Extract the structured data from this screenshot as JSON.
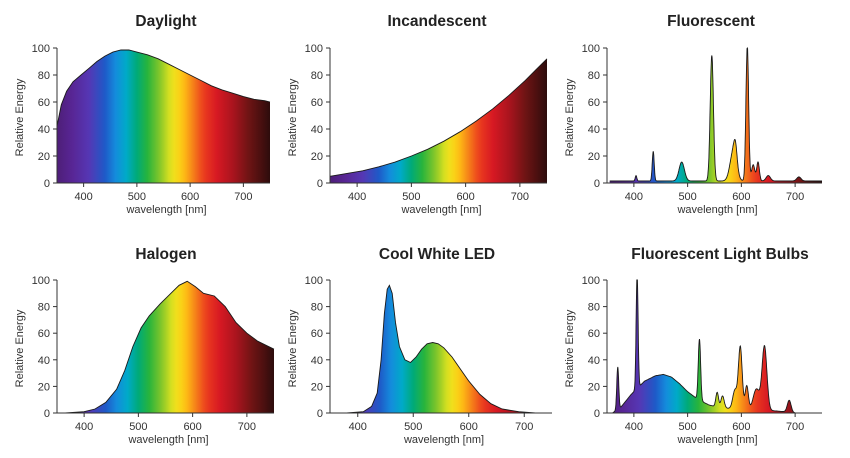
{
  "chart_data": [
    {
      "type": "area",
      "title": "Daylight",
      "xlabel": "wavelength [nm]",
      "ylabel": "Relative Energy",
      "xlim": [
        350,
        750
      ],
      "ylim": [
        0,
        100
      ],
      "xticks": [
        "400",
        "500",
        "600",
        "700"
      ],
      "yticks": [
        "0",
        "20",
        "40",
        "60",
        "80",
        "100"
      ],
      "x": [
        350,
        358,
        368,
        380,
        395,
        410,
        425,
        440,
        455,
        470,
        485,
        500,
        520,
        540,
        560,
        580,
        600,
        620,
        640,
        660,
        680,
        700,
        720,
        740,
        750
      ],
      "y": [
        42,
        58,
        68,
        75,
        80,
        85,
        90,
        94,
        97,
        98.5,
        98.5,
        97,
        95,
        92,
        88,
        84,
        80,
        76,
        72,
        69,
        66.5,
        64,
        62,
        61,
        60
      ]
    },
    {
      "type": "area",
      "title": "Incandescent",
      "xlabel": "wavelength [nm]",
      "ylabel": "Relative Energy",
      "xlim": [
        350,
        750
      ],
      "ylim": [
        0,
        100
      ],
      "xticks": [
        "400",
        "500",
        "600",
        "700"
      ],
      "yticks": [
        "0",
        "20",
        "40",
        "60",
        "80",
        "100"
      ],
      "x": [
        350,
        380,
        410,
        440,
        470,
        500,
        530,
        560,
        590,
        620,
        650,
        680,
        710,
        730,
        750
      ],
      "y": [
        5,
        7,
        9,
        12,
        15.5,
        20,
        25,
        31,
        38,
        46,
        55,
        65,
        76,
        84,
        92
      ]
    },
    {
      "type": "area",
      "title": "Fluorescent",
      "xlabel": "wavelength [nm]",
      "ylabel": "Relative Energy",
      "xlim": [
        350,
        750
      ],
      "ylim": [
        0,
        100
      ],
      "xticks": [
        "400",
        "500",
        "600",
        "700"
      ],
      "yticks": [
        "0",
        "20",
        "40",
        "60",
        "80",
        "100"
      ],
      "baseline": 1.5,
      "peaks": [
        {
          "center": 404,
          "height": 4,
          "width": 1.5
        },
        {
          "center": 436,
          "height": 22,
          "width": 1.8
        },
        {
          "center": 489,
          "height": 14,
          "width": 5
        },
        {
          "center": 545,
          "height": 93,
          "width": 3
        },
        {
          "center": 585,
          "height": 22,
          "width": 6
        },
        {
          "center": 589,
          "height": 12,
          "width": 3
        },
        {
          "center": 611,
          "height": 100,
          "width": 2.5
        },
        {
          "center": 622,
          "height": 12,
          "width": 3
        },
        {
          "center": 631,
          "height": 14,
          "width": 2.5
        },
        {
          "center": 650,
          "height": 4,
          "width": 4
        },
        {
          "center": 707,
          "height": 3,
          "width": 4
        }
      ]
    },
    {
      "type": "area",
      "title": "Halogen",
      "xlabel": "wavelength [nm]",
      "ylabel": "Relative Energy",
      "xlim": [
        350,
        750
      ],
      "ylim": [
        0,
        100
      ],
      "xticks": [
        "400",
        "500",
        "600",
        "700"
      ],
      "yticks": [
        "0",
        "20",
        "40",
        "60",
        "80",
        "100"
      ],
      "x": [
        365,
        400,
        420,
        440,
        460,
        475,
        490,
        505,
        520,
        540,
        560,
        575,
        590,
        605,
        620,
        640,
        660,
        680,
        700,
        720,
        740,
        750
      ],
      "y": [
        0,
        1,
        3,
        8,
        18,
        32,
        50,
        64,
        73,
        82,
        90,
        96,
        99,
        95,
        90,
        88,
        80,
        68,
        60,
        54,
        50,
        48
      ]
    },
    {
      "type": "area",
      "title": "Cool White LED",
      "xlabel": "wavelength [nm]",
      "ylabel": "Relative Energy",
      "xlim": [
        350,
        750
      ],
      "ylim": [
        0,
        100
      ],
      "xticks": [
        "400",
        "500",
        "600",
        "700"
      ],
      "yticks": [
        "0",
        "20",
        "40",
        "60",
        "80",
        "100"
      ],
      "x": [
        380,
        410,
        425,
        435,
        442,
        448,
        453,
        457,
        462,
        468,
        475,
        485,
        495,
        505,
        515,
        525,
        535,
        545,
        555,
        570,
        585,
        600,
        620,
        640,
        660,
        690,
        720
      ],
      "y": [
        0,
        1,
        5,
        15,
        40,
        75,
        93,
        96,
        90,
        68,
        50,
        40,
        38,
        42,
        48,
        52,
        53,
        52,
        49,
        42,
        33,
        24,
        14,
        7,
        3,
        1,
        0
      ]
    },
    {
      "type": "area",
      "title": "Fluorescent Light Bulbs",
      "xlabel": "wavelength [nm]",
      "ylabel": "Relative Energy",
      "xlim": [
        350,
        750
      ],
      "ylim": [
        0,
        100
      ],
      "xticks": [
        "400",
        "500",
        "600",
        "700"
      ],
      "yticks": [
        "0",
        "20",
        "40",
        "60",
        "80",
        "100"
      ],
      "baseline_x": [
        360,
        375,
        395,
        420,
        440,
        455,
        470,
        485,
        500,
        520,
        540,
        560,
        590,
        620,
        650,
        680,
        700,
        720
      ],
      "baseline_y": [
        0,
        4,
        14,
        24,
        28,
        29,
        27,
        22,
        16,
        10,
        6,
        4,
        3,
        2,
        2,
        1,
        0,
        0
      ],
      "peaks": [
        {
          "center": 370,
          "height": 32,
          "width": 1.8
        },
        {
          "center": 406,
          "height": 88,
          "width": 1.8
        },
        {
          "center": 522,
          "height": 46,
          "width": 2.2
        },
        {
          "center": 555,
          "height": 11,
          "width": 2.5
        },
        {
          "center": 565,
          "height": 9,
          "width": 3
        },
        {
          "center": 588,
          "height": 14,
          "width": 4
        },
        {
          "center": 598,
          "height": 47,
          "width": 3.5
        },
        {
          "center": 610,
          "height": 18,
          "width": 3
        },
        {
          "center": 628,
          "height": 16,
          "width": 6
        },
        {
          "center": 643,
          "height": 48,
          "width": 4.5
        },
        {
          "center": 689,
          "height": 9,
          "width": 3.5
        }
      ]
    }
  ]
}
